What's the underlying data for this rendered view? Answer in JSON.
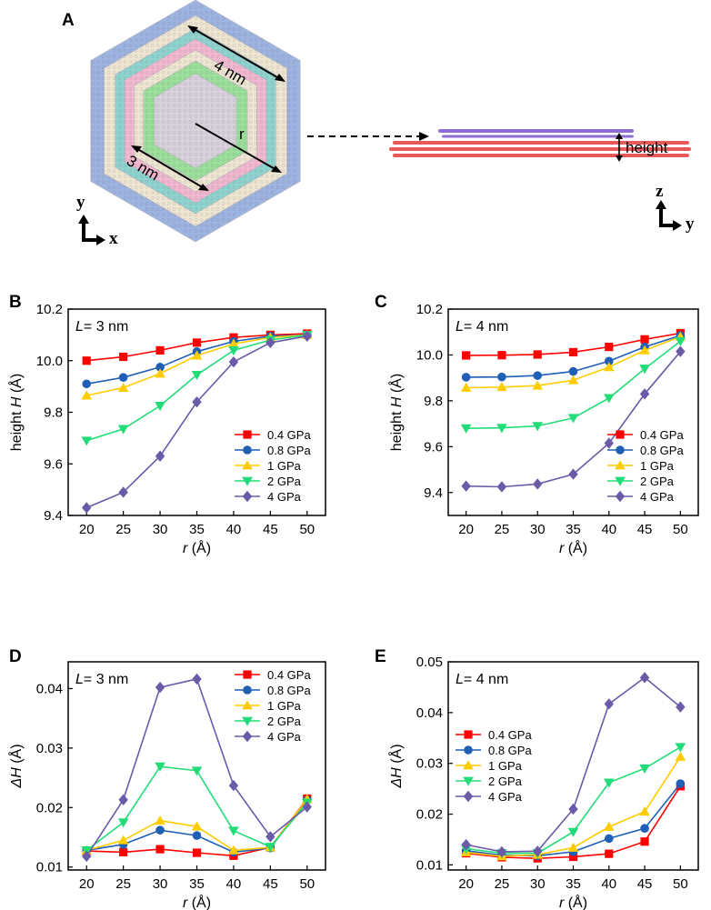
{
  "panel_labels": [
    "A",
    "B",
    "C",
    "D",
    "E"
  ],
  "schematic": {
    "label_4nm": "4 nm",
    "label_3nm": "3 nm",
    "label_r": "r",
    "label_height": "height",
    "top_axis_y": "y",
    "top_axis_x": "x",
    "side_axis_z": "z",
    "side_axis_y": "y",
    "colors": {
      "blue": "#9db3e0",
      "beige": "#efe6d2",
      "teal": "#8fd3cf",
      "pink": "#f2b8cf",
      "green": "#9be09b",
      "center": "#d9d2dd",
      "sheet_purple": "#8e6fd1",
      "sheet_red": "#e65a5a"
    }
  },
  "series_styles": [
    {
      "name": "0.4 GPa",
      "color": "#ff0000",
      "marker": "square"
    },
    {
      "name": "0.8 GPa",
      "color": "#1f5fb5",
      "marker": "circle"
    },
    {
      "name": "1 GPa",
      "color": "#ffcc00",
      "marker": "triangle-up"
    },
    {
      "name": "2 GPa",
      "color": "#22dd77",
      "marker": "triangle-down"
    },
    {
      "name": "4 GPa",
      "color": "#6a5aa8",
      "marker": "diamond"
    }
  ],
  "chart_data": [
    {
      "id": "B",
      "type": "line",
      "annotation_prefix": "L",
      "annotation_value": "= 3 nm",
      "xlabel_var": "r",
      "xlabel_unit": " (Å)",
      "ylabel_pre": "height ",
      "ylabel_var": "H",
      "ylabel_unit": " (Å)",
      "x": [
        20,
        25,
        30,
        35,
        40,
        45,
        50
      ],
      "xlim": [
        17.5,
        52.5
      ],
      "ylim": [
        9.4,
        10.2
      ],
      "yticks": [
        "9.4",
        "9.6",
        "9.8",
        "10.0",
        "10.2"
      ],
      "legend": "lower-right",
      "series": [
        {
          "name": "0.4 GPa",
          "values": [
            10.0,
            10.015,
            10.04,
            10.07,
            10.09,
            10.1,
            10.105
          ]
        },
        {
          "name": "0.8 GPa",
          "values": [
            9.91,
            9.935,
            9.975,
            10.035,
            10.075,
            10.095,
            10.1
          ]
        },
        {
          "name": "1 GPa",
          "values": [
            9.865,
            9.895,
            9.95,
            10.02,
            10.065,
            10.09,
            10.1
          ]
        },
        {
          "name": "2 GPa",
          "values": [
            9.69,
            9.735,
            9.825,
            9.945,
            10.04,
            10.08,
            10.1
          ]
        },
        {
          "name": "4 GPa",
          "values": [
            9.43,
            9.49,
            9.63,
            9.84,
            9.995,
            10.07,
            10.095
          ]
        }
      ]
    },
    {
      "id": "C",
      "type": "line",
      "annotation_prefix": "L",
      "annotation_value": "= 4 nm",
      "xlabel_var": "r",
      "xlabel_unit": " (Å)",
      "ylabel_pre": "height ",
      "ylabel_var": "H",
      "ylabel_unit": " (Å)",
      "x": [
        20,
        25,
        30,
        35,
        40,
        45,
        50
      ],
      "xlim": [
        17.5,
        52.5
      ],
      "ylim": [
        9.3,
        10.2
      ],
      "yticks": [
        "9.4",
        "9.6",
        "9.8",
        "10.0",
        "10.2"
      ],
      "legend": "lower-right",
      "series": [
        {
          "name": "0.4 GPa",
          "values": [
            9.998,
            9.999,
            10.002,
            10.012,
            10.035,
            10.068,
            10.095
          ]
        },
        {
          "name": "0.8 GPa",
          "values": [
            9.903,
            9.904,
            9.91,
            9.928,
            9.973,
            10.035,
            10.085
          ]
        },
        {
          "name": "1 GPa",
          "values": [
            9.857,
            9.86,
            9.866,
            9.89,
            9.947,
            10.02,
            10.08
          ]
        },
        {
          "name": "2 GPa",
          "values": [
            9.68,
            9.682,
            9.69,
            9.725,
            9.812,
            9.94,
            10.06
          ]
        },
        {
          "name": "4 GPa",
          "values": [
            9.428,
            9.425,
            9.437,
            9.48,
            9.615,
            9.83,
            10.015
          ]
        }
      ]
    },
    {
      "id": "D",
      "type": "line",
      "annotation_prefix": "L",
      "annotation_value": "= 3 nm",
      "xlabel_var": "r",
      "xlabel_unit": " (Å)",
      "ylabel_pre": "",
      "ylabel_var": "ΔH",
      "ylabel_unit": " (Å)",
      "x": [
        20,
        25,
        30,
        35,
        40,
        45,
        50
      ],
      "xlim": [
        17.5,
        52.5
      ],
      "ylim": [
        0.0095,
        0.0445
      ],
      "yticks": [
        "0.01",
        "0.02",
        "0.03",
        "0.04"
      ],
      "legend": "upper-right",
      "series": [
        {
          "name": "0.4 GPa",
          "values": [
            0.0127,
            0.0125,
            0.013,
            0.0124,
            0.0119,
            0.0133,
            0.0215
          ]
        },
        {
          "name": "0.8 GPa",
          "values": [
            0.0128,
            0.0138,
            0.0162,
            0.0153,
            0.0125,
            0.0132,
            0.0213
          ]
        },
        {
          "name": "1 GPa",
          "values": [
            0.0128,
            0.0145,
            0.0178,
            0.0168,
            0.0128,
            0.0133,
            0.0214
          ]
        },
        {
          "name": "2 GPa",
          "values": [
            0.0128,
            0.0175,
            0.0269,
            0.0262,
            0.0161,
            0.0134,
            0.0208
          ]
        },
        {
          "name": "4 GPa",
          "values": [
            0.0118,
            0.0213,
            0.0402,
            0.0416,
            0.0237,
            0.0151,
            0.0201
          ]
        }
      ]
    },
    {
      "id": "E",
      "type": "line",
      "annotation_prefix": "L",
      "annotation_value": "= 4 nm",
      "xlabel_var": "r",
      "xlabel_unit": " (Å)",
      "ylabel_pre": "",
      "ylabel_var": "ΔH",
      "ylabel_unit": " (Å)",
      "x": [
        20,
        25,
        30,
        35,
        40,
        45,
        50
      ],
      "xlim": [
        17.5,
        52.5
      ],
      "ylim": [
        0.009,
        0.05
      ],
      "yticks": [
        "0.01",
        "0.02",
        "0.03",
        "0.04",
        "0.05"
      ],
      "legend": "lower-left",
      "series": [
        {
          "name": "0.4 GPa",
          "values": [
            0.0123,
            0.0115,
            0.0113,
            0.0116,
            0.0122,
            0.0146,
            0.0255
          ]
        },
        {
          "name": "0.8 GPa",
          "values": [
            0.0128,
            0.0119,
            0.0118,
            0.0126,
            0.0152,
            0.0172,
            0.026
          ]
        },
        {
          "name": "1 GPa",
          "values": [
            0.0125,
            0.0117,
            0.012,
            0.0134,
            0.0175,
            0.0205,
            0.0313
          ]
        },
        {
          "name": "2 GPa",
          "values": [
            0.0132,
            0.0123,
            0.0123,
            0.0165,
            0.0262,
            0.029,
            0.0332
          ]
        },
        {
          "name": "4 GPa",
          "values": [
            0.014,
            0.0126,
            0.0127,
            0.021,
            0.0417,
            0.0469,
            0.0411
          ]
        }
      ]
    }
  ]
}
